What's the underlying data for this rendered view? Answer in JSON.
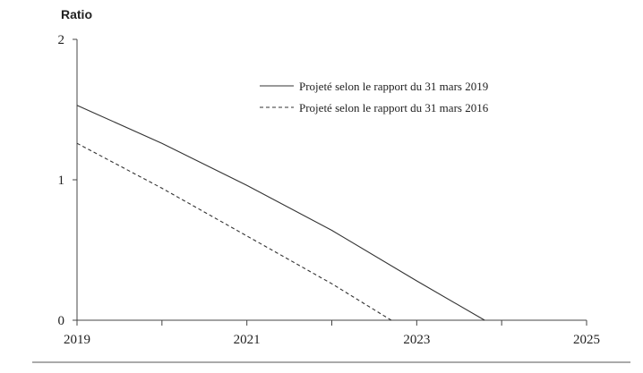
{
  "chart_data": {
    "type": "line",
    "title": "",
    "xlabel": "",
    "ylabel": "Ratio",
    "xlim": [
      2019,
      2025
    ],
    "ylim": [
      0,
      2
    ],
    "x_ticks": [
      2019,
      2020,
      2021,
      2022,
      2023,
      2024,
      2025
    ],
    "x_tick_labels": [
      "2019",
      "",
      "2021",
      "",
      "2023",
      "",
      "2025"
    ],
    "y_ticks": [
      0,
      1,
      2
    ],
    "y_tick_labels": [
      "0",
      "1",
      "2"
    ],
    "grid": false,
    "legend_position": "top-right",
    "series": [
      {
        "name": "Projeté selon le rapport du 31 mars 2019",
        "style": "solid",
        "color": "#333333",
        "x": [
          2019,
          2020,
          2021,
          2022,
          2023,
          2023.8
        ],
        "y": [
          1.53,
          1.26,
          0.96,
          0.64,
          0.28,
          0.0
        ]
      },
      {
        "name": "Projeté selon le rapport du 31 mars 2016",
        "style": "dashed",
        "color": "#333333",
        "x": [
          2019,
          2020,
          2021,
          2022,
          2022.7
        ],
        "y": [
          1.26,
          0.94,
          0.6,
          0.26,
          0.0
        ]
      }
    ]
  }
}
